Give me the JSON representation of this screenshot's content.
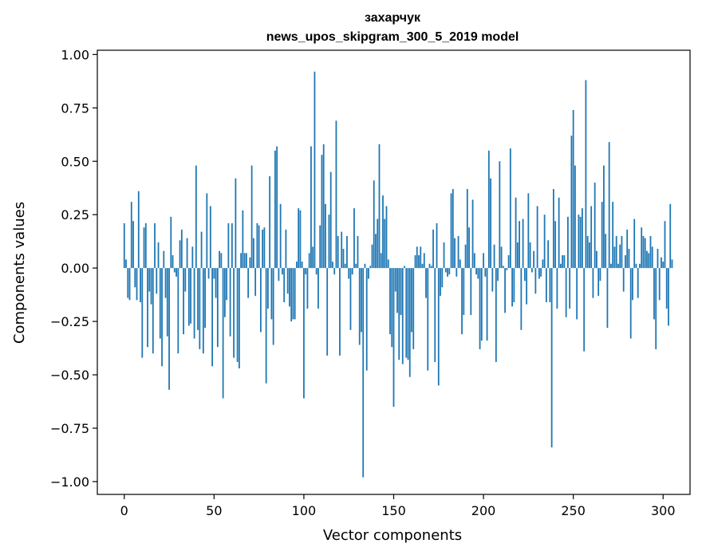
{
  "chart_data": {
    "type": "bar",
    "title": "захарчук",
    "subtitle": "news_upos_skipgram_300_5_2019 model",
    "xlabel": "Vector components",
    "ylabel": "Components values",
    "xlim": [
      -15,
      315
    ],
    "ylim": [
      -1.06,
      1.02
    ],
    "xticks": [
      0,
      50,
      100,
      150,
      200,
      250,
      300
    ],
    "xtick_labels": [
      "0",
      "50",
      "100",
      "150",
      "200",
      "250",
      "300"
    ],
    "yticks": [
      1.0,
      0.75,
      0.5,
      0.25,
      0.0,
      -0.25,
      -0.5,
      -0.75,
      -1.0
    ],
    "ytick_labels": [
      "1.00",
      "0.75",
      "0.50",
      "0.25",
      "0.00",
      "−0.25",
      "−0.50",
      "−0.75",
      "−1.00"
    ],
    "grid": false,
    "bar_color": "#1f77b4",
    "x_start": 0,
    "values": [
      0.21,
      0.04,
      -0.14,
      -0.15,
      0.31,
      0.22,
      -0.09,
      -0.15,
      0.36,
      -0.16,
      -0.42,
      0.19,
      0.21,
      -0.37,
      -0.11,
      -0.17,
      -0.4,
      0.21,
      -0.12,
      0.12,
      -0.33,
      -0.46,
      0.08,
      -0.14,
      -0.32,
      -0.57,
      0.24,
      0.06,
      -0.02,
      -0.04,
      -0.4,
      0.13,
      0.18,
      -0.31,
      -0.11,
      0.14,
      -0.27,
      -0.26,
      0.1,
      -0.33,
      0.48,
      -0.29,
      -0.38,
      0.17,
      -0.4,
      -0.28,
      0.35,
      -0.05,
      0.29,
      -0.46,
      -0.05,
      -0.14,
      -0.37,
      0.08,
      0.07,
      -0.61,
      -0.23,
      -0.15,
      0.21,
      -0.32,
      0.21,
      -0.42,
      0.42,
      -0.44,
      -0.47,
      0.07,
      0.27,
      0.07,
      0.07,
      -0.14,
      0.05,
      0.48,
      0.14,
      -0.13,
      0.21,
      0.2,
      -0.3,
      0.18,
      0.19,
      -0.54,
      -0.19,
      0.43,
      -0.24,
      -0.36,
      0.55,
      0.57,
      -0.06,
      0.3,
      -0.03,
      -0.16,
      0.18,
      -0.12,
      -0.18,
      -0.25,
      -0.24,
      -0.24,
      0.03,
      0.28,
      0.27,
      0.03,
      -0.61,
      -0.03,
      -0.19,
      0.07,
      0.57,
      0.1,
      0.92,
      -0.03,
      -0.19,
      0.2,
      0.53,
      0.58,
      0.3,
      -0.41,
      0.25,
      0.45,
      0.03,
      -0.03,
      0.69,
      0.15,
      -0.41,
      0.17,
      0.09,
      0.02,
      0.15,
      -0.05,
      -0.29,
      -0.03,
      0.28,
      0.02,
      0.15,
      -0.36,
      -0.3,
      -0.98,
      0.02,
      -0.48,
      -0.05,
      0.01,
      0.11,
      0.41,
      0.16,
      0.23,
      0.58,
      0.07,
      0.34,
      0.23,
      0.29,
      0.04,
      -0.31,
      -0.37,
      -0.65,
      -0.11,
      -0.21,
      -0.43,
      -0.22,
      -0.45,
      0.01,
      -0.42,
      -0.43,
      -0.51,
      -0.3,
      -0.38,
      0.06,
      0.1,
      0.06,
      0.1,
      0.02,
      0.07,
      -0.14,
      -0.48,
      0.02,
      0.01,
      0.18,
      -0.44,
      0.21,
      -0.55,
      -0.13,
      -0.09,
      0.12,
      -0.02,
      -0.04,
      -0.03,
      0.35,
      0.37,
      0.14,
      -0.04,
      0.15,
      0.04,
      -0.31,
      -0.22,
      0.11,
      0.37,
      0.19,
      -0.22,
      0.32,
      0.07,
      -0.03,
      -0.05,
      -0.38,
      -0.34,
      0.07,
      -0.04,
      -0.34,
      0.55,
      0.42,
      -0.11,
      0.11,
      -0.44,
      -0.06,
      0.5,
      0.1,
      0.01,
      -0.21,
      -0.01,
      0.06,
      0.56,
      -0.18,
      -0.16,
      0.33,
      0.12,
      0.22,
      -0.29,
      0.23,
      -0.06,
      -0.17,
      0.35,
      0.12,
      -0.02,
      0.08,
      -0.12,
      0.29,
      -0.05,
      -0.04,
      0.04,
      0.25,
      -0.16,
      0.13,
      -0.16,
      -0.84,
      0.37,
      0.22,
      -0.19,
      0.33,
      0.02,
      0.06,
      0.06,
      -0.23,
      0.24,
      -0.19,
      0.62,
      0.74,
      0.48,
      -0.24,
      0.25,
      0.24,
      0.28,
      -0.39,
      0.88,
      0.15,
      0.12,
      0.29,
      -0.14,
      0.4,
      0.08,
      -0.13,
      -0.06,
      0.31,
      0.48,
      0.16,
      -0.28,
      0.59,
      0.02,
      0.31,
      0.1,
      0.15,
      0.02,
      0.11,
      0.15,
      -0.11,
      0.06,
      0.18,
      0.09,
      -0.33,
      -0.15,
      0.23,
      0.02,
      -0.14,
      0.02,
      0.19,
      0.15,
      0.14,
      0.08,
      0.07,
      0.15,
      0.1,
      -0.24,
      -0.38,
      0.09,
      -0.15,
      0.05,
      0.03,
      0.22,
      -0.19,
      -0.27,
      0.3,
      0.04
    ]
  }
}
